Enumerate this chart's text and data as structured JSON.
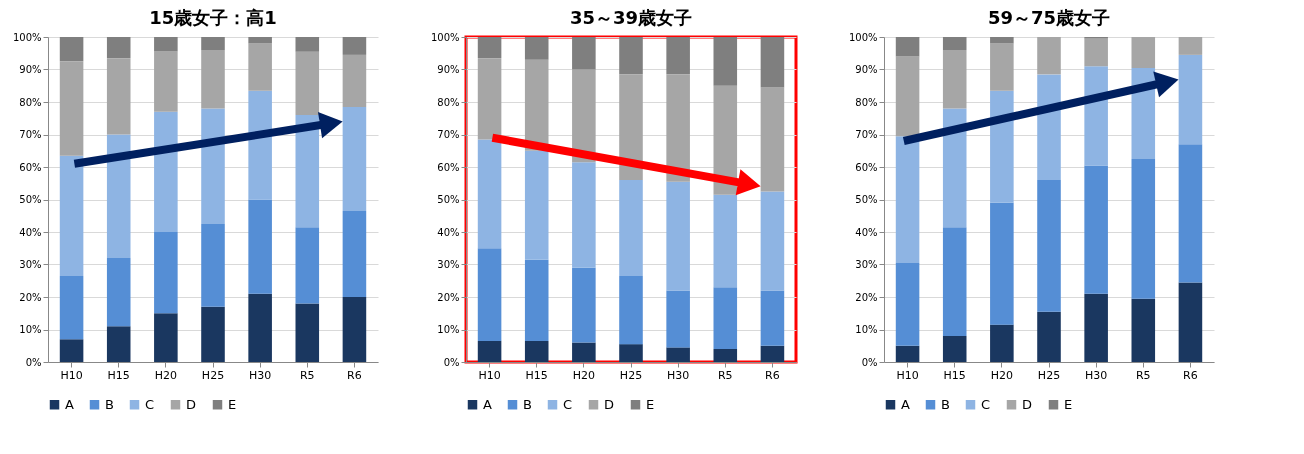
{
  "chart_data": [
    {
      "type": "bar",
      "title": "15歳女子：高1",
      "stacked": true,
      "categories": [
        "H10",
        "H15",
        "H20",
        "H25",
        "H30",
        "R5",
        "R6"
      ],
      "ylim": [
        0,
        100
      ],
      "yticks": [
        {
          "value": 0,
          "label": "0%"
        },
        {
          "value": 10,
          "label": "10%"
        },
        {
          "value": 20,
          "label": "20%"
        },
        {
          "value": 30,
          "label": "30%"
        },
        {
          "value": 40,
          "label": "40%"
        },
        {
          "value": 50,
          "label": "50%"
        },
        {
          "value": 60,
          "label": "60%"
        },
        {
          "value": 70,
          "label": "70%"
        },
        {
          "value": 80,
          "label": "80%"
        },
        {
          "value": 90,
          "label": "90%"
        },
        {
          "value": 100,
          "label": "100%"
        }
      ],
      "grid": "y",
      "legend": "bottom",
      "series": [
        {
          "name": "A",
          "color": "#1a3760",
          "values": [
            7,
            11,
            15,
            17,
            21,
            18,
            20
          ]
        },
        {
          "name": "B",
          "color": "#558ed5",
          "values": [
            19.5,
            21,
            25,
            25.5,
            29,
            23.5,
            26.5
          ]
        },
        {
          "name": "C",
          "color": "#8eb4e3",
          "values": [
            37,
            38,
            37,
            35.5,
            33.5,
            34.5,
            32
          ]
        },
        {
          "name": "D",
          "color": "#a6a6a6",
          "values": [
            29,
            23.5,
            18.5,
            18,
            14.5,
            19.5,
            16
          ]
        },
        {
          "name": "E",
          "color": "#7f7f7f",
          "values": [
            7.5,
            6.5,
            4.5,
            4,
            2,
            4.5,
            5.5
          ]
        }
      ]
    },
    {
      "type": "bar",
      "title": "35～39歳女子",
      "stacked": true,
      "categories": [
        "H10",
        "H15",
        "H20",
        "H25",
        "H30",
        "R5",
        "R6"
      ],
      "ylim": [
        0,
        100
      ],
      "yticks": [
        {
          "value": 0,
          "label": "0%"
        },
        {
          "value": 10,
          "label": "10%"
        },
        {
          "value": 20,
          "label": "20%"
        },
        {
          "value": 30,
          "label": "30%"
        },
        {
          "value": 40,
          "label": "40%"
        },
        {
          "value": 50,
          "label": "50%"
        },
        {
          "value": 60,
          "label": "60%"
        },
        {
          "value": 70,
          "label": "70%"
        },
        {
          "value": 80,
          "label": "80%"
        },
        {
          "value": 90,
          "label": "90%"
        },
        {
          "value": 100,
          "label": "100%"
        }
      ],
      "grid": "y",
      "legend": "bottom",
      "series": [
        {
          "name": "A",
          "color": "#1a3760",
          "values": [
            6.5,
            6.5,
            6,
            5.5,
            4.5,
            4,
            5
          ]
        },
        {
          "name": "B",
          "color": "#558ed5",
          "values": [
            28.5,
            25,
            23,
            21,
            17.5,
            19,
            17
          ]
        },
        {
          "name": "C",
          "color": "#8eb4e3",
          "values": [
            33.5,
            33.5,
            32.5,
            29.5,
            33.5,
            28.5,
            30.5
          ]
        },
        {
          "name": "D",
          "color": "#a6a6a6",
          "values": [
            25,
            28,
            28.5,
            32.5,
            33,
            33.5,
            32
          ]
        },
        {
          "name": "E",
          "color": "#7f7f7f",
          "values": [
            6.5,
            7,
            10,
            11.5,
            11.5,
            15,
            15.5
          ]
        }
      ]
    },
    {
      "type": "bar",
      "title": "59～75歳女子",
      "stacked": true,
      "categories": [
        "H10",
        "H15",
        "H20",
        "H25",
        "H30",
        "R5",
        "R6"
      ],
      "ylim": [
        0,
        100
      ],
      "yticks": [
        {
          "value": 0,
          "label": "0%"
        },
        {
          "value": 10,
          "label": "10%"
        },
        {
          "value": 20,
          "label": "20%"
        },
        {
          "value": 30,
          "label": "30%"
        },
        {
          "value": 40,
          "label": "40%"
        },
        {
          "value": 50,
          "label": "50%"
        },
        {
          "value": 60,
          "label": "60%"
        },
        {
          "value": 70,
          "label": "70%"
        },
        {
          "value": 80,
          "label": "80%"
        },
        {
          "value": 90,
          "label": "90%"
        },
        {
          "value": 100,
          "label": "100%"
        }
      ],
      "grid": "y",
      "legend": "bottom",
      "series": [
        {
          "name": "A",
          "color": "#1a3760",
          "values": [
            5,
            8,
            11.5,
            15.5,
            21,
            19.5,
            24.5
          ]
        },
        {
          "name": "B",
          "color": "#558ed5",
          "values": [
            25.5,
            33.5,
            37.5,
            40.5,
            39.5,
            43,
            42.5
          ]
        },
        {
          "name": "C",
          "color": "#8eb4e3",
          "values": [
            39,
            36.5,
            34.5,
            32.5,
            30.5,
            28,
            27.5
          ]
        },
        {
          "name": "D",
          "color": "#a6a6a6",
          "values": [
            24.5,
            18,
            14.5,
            11.5,
            8.5,
            9.5,
            5.5
          ]
        },
        {
          "name": "E",
          "color": "#7f7f7f",
          "values": [
            6,
            4,
            2,
            0,
            0.5,
            0,
            0
          ]
        }
      ]
    }
  ]
}
